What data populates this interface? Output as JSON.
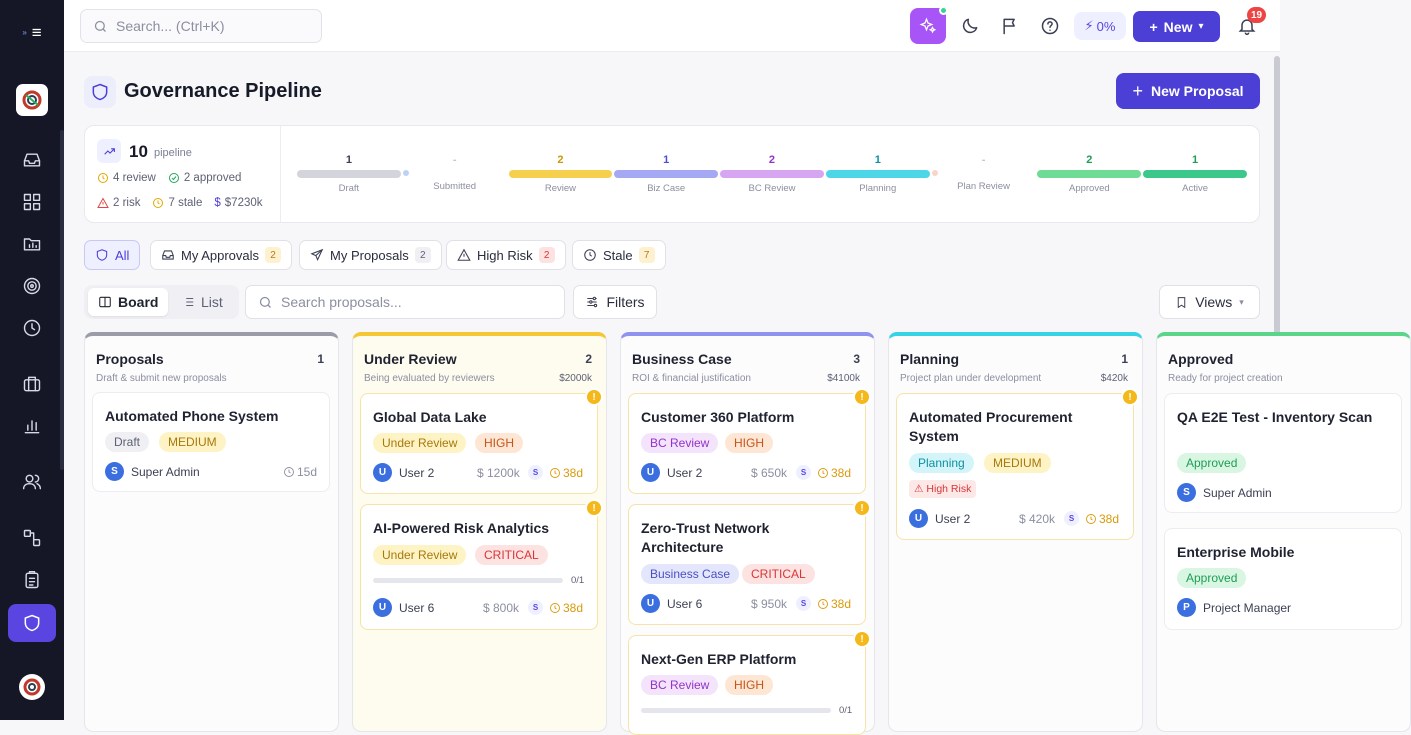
{
  "topbar": {
    "search_placeholder": "Search... (Ctrl+K)",
    "ai_percent": "0%",
    "new_label": "New",
    "notifications_count": "19"
  },
  "page": {
    "title": "Governance Pipeline",
    "new_proposal_label": "New Proposal"
  },
  "stats": {
    "pipeline_count": "10",
    "pipeline_label": "pipeline",
    "review": "4 review",
    "approved": "2 approved",
    "risk": "2 risk",
    "stale": "7 stale",
    "value": "$7230k",
    "stages": [
      {
        "count": "1",
        "label": "Draft",
        "color": "#d4d5dc"
      },
      {
        "count": "-",
        "label": "Submitted",
        "color": "#bcd3f6"
      },
      {
        "count": "2",
        "label": "Review",
        "color": "#f6d04d"
      },
      {
        "count": "1",
        "label": "Biz Case",
        "color": "#a5a8f3"
      },
      {
        "count": "2",
        "label": "BC Review",
        "color": "#d7a6f3"
      },
      {
        "count": "1",
        "label": "Planning",
        "color": "#4dd6e8"
      },
      {
        "count": "-",
        "label": "Plan Review",
        "color": "#f8d5c8"
      },
      {
        "count": "2",
        "label": "Approved",
        "color": "#6fdc96"
      },
      {
        "count": "1",
        "label": "Active",
        "color": "#3cc88a"
      }
    ]
  },
  "filters": {
    "all": "All",
    "my_approvals": "My Approvals",
    "my_approvals_count": "2",
    "my_proposals": "My Proposals",
    "my_proposals_count": "2",
    "high_risk": "High Risk",
    "high_risk_count": "2",
    "stale": "Stale",
    "stale_count": "7"
  },
  "view": {
    "board": "Board",
    "list": "List",
    "search_placeholder": "Search proposals...",
    "filters": "Filters",
    "views": "Views"
  },
  "columns": [
    {
      "title": "Proposals",
      "count": "1",
      "subtitle": "Draft & submit new proposals",
      "amount": "",
      "color": "#9a9ca8",
      "cards": [
        {
          "title": "Automated Phone System",
          "status": "Draft",
          "priority": "MEDIUM",
          "user_initial": "S",
          "user": "Super Admin",
          "age": "15d"
        }
      ]
    },
    {
      "title": "Under Review",
      "count": "2",
      "subtitle": "Being evaluated by reviewers",
      "amount": "$2000k",
      "color": "#f6c735",
      "cards": [
        {
          "title": "Global Data Lake",
          "status": "Under Review",
          "priority": "HIGH",
          "user_initial": "U",
          "user": "User 2",
          "amount": "$ 1200k",
          "s": "S",
          "age": "38d"
        },
        {
          "title": "AI-Powered Risk Analytics",
          "status": "Under Review",
          "priority": "CRITICAL",
          "progress": "0/1",
          "user_initial": "U",
          "user": "User 6",
          "amount": "$ 800k",
          "s": "S",
          "age": "38d"
        }
      ]
    },
    {
      "title": "Business Case",
      "count": "3",
      "subtitle": "ROI & financial justification",
      "amount": "$4100k",
      "color": "#8f92ee",
      "cards": [
        {
          "title": "Customer 360 Platform",
          "status": "BC Review",
          "priority": "HIGH",
          "user_initial": "U",
          "user": "User 2",
          "amount": "$ 650k",
          "s": "S",
          "age": "38d"
        },
        {
          "title": "Zero-Trust Network Architecture",
          "status": "Business Case",
          "priority": "CRITICAL",
          "user_initial": "U",
          "user": "User 6",
          "amount": "$ 950k",
          "s": "S",
          "age": "38d"
        },
        {
          "title": "Next-Gen ERP Platform",
          "status": "BC Review",
          "priority": "HIGH",
          "progress": "0/1"
        }
      ]
    },
    {
      "title": "Planning",
      "count": "1",
      "subtitle": "Project plan under development",
      "amount": "$420k",
      "color": "#36d3e6",
      "cards": [
        {
          "title": "Automated Procurement System",
          "status": "Planning",
          "priority": "MEDIUM",
          "risk": "High Risk",
          "user_initial": "U",
          "user": "User 2",
          "amount": "$ 420k",
          "s": "S",
          "age": "38d"
        }
      ]
    },
    {
      "title": "Approved",
      "subtitle": "Ready for project creation",
      "color": "#5ad58a",
      "cards": [
        {
          "title": "QA E2E Test - Inventory Scan",
          "status": "Approved",
          "user_initial": "S",
          "user": "Super Admin"
        },
        {
          "title": "Enterprise Mobile",
          "status": "Approved",
          "user_initial": "P",
          "user": "Project Manager"
        }
      ]
    }
  ]
}
